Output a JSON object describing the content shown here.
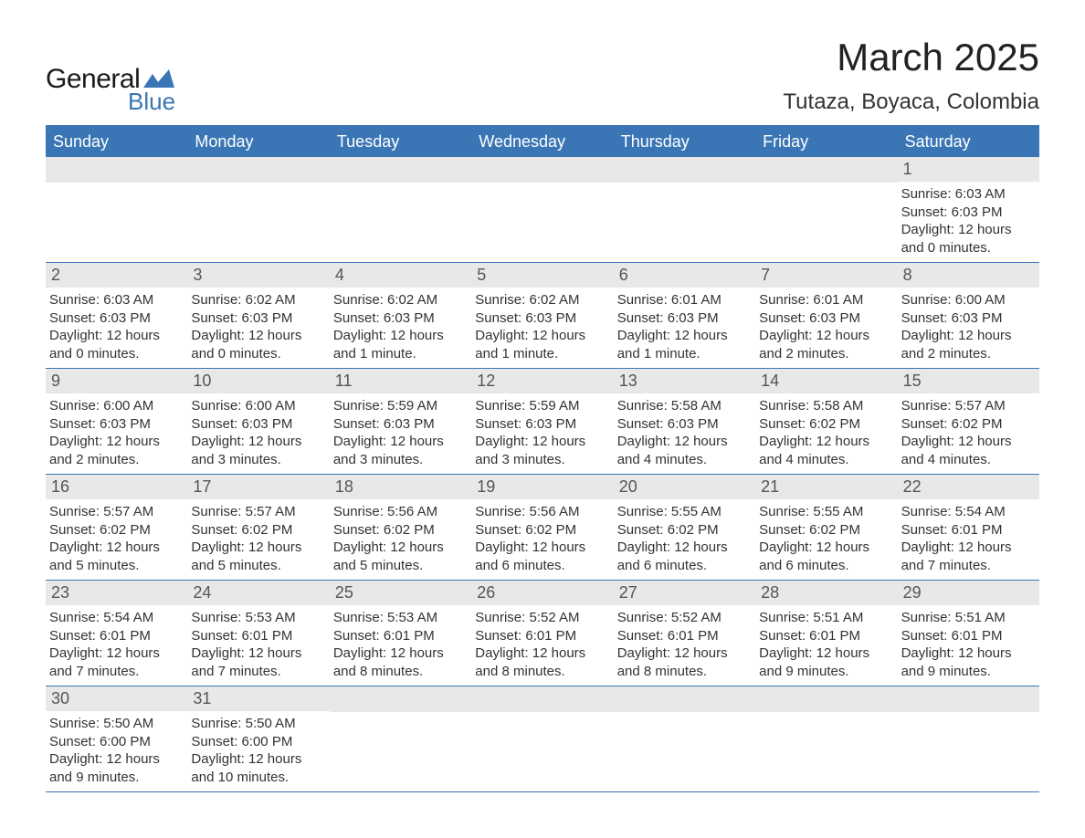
{
  "brand": {
    "general": "General",
    "blue": "Blue",
    "logo_color": "#3a76b5"
  },
  "title": "March 2025",
  "location": "Tutaza, Boyaca, Colombia",
  "colors": {
    "header_bg": "#3a76b5",
    "header_text": "#ffffff",
    "daynum_bg": "#e8e8e8",
    "daynum_text": "#555555",
    "body_text": "#333333",
    "border": "#3a76b5",
    "page_bg": "#ffffff"
  },
  "weekdays": [
    "Sunday",
    "Monday",
    "Tuesday",
    "Wednesday",
    "Thursday",
    "Friday",
    "Saturday"
  ],
  "first_weekday_index": 6,
  "days": [
    {
      "n": 1,
      "sunrise": "6:03 AM",
      "sunset": "6:03 PM",
      "daylight": "12 hours and 0 minutes."
    },
    {
      "n": 2,
      "sunrise": "6:03 AM",
      "sunset": "6:03 PM",
      "daylight": "12 hours and 0 minutes."
    },
    {
      "n": 3,
      "sunrise": "6:02 AM",
      "sunset": "6:03 PM",
      "daylight": "12 hours and 0 minutes."
    },
    {
      "n": 4,
      "sunrise": "6:02 AM",
      "sunset": "6:03 PM",
      "daylight": "12 hours and 1 minute."
    },
    {
      "n": 5,
      "sunrise": "6:02 AM",
      "sunset": "6:03 PM",
      "daylight": "12 hours and 1 minute."
    },
    {
      "n": 6,
      "sunrise": "6:01 AM",
      "sunset": "6:03 PM",
      "daylight": "12 hours and 1 minute."
    },
    {
      "n": 7,
      "sunrise": "6:01 AM",
      "sunset": "6:03 PM",
      "daylight": "12 hours and 2 minutes."
    },
    {
      "n": 8,
      "sunrise": "6:00 AM",
      "sunset": "6:03 PM",
      "daylight": "12 hours and 2 minutes."
    },
    {
      "n": 9,
      "sunrise": "6:00 AM",
      "sunset": "6:03 PM",
      "daylight": "12 hours and 2 minutes."
    },
    {
      "n": 10,
      "sunrise": "6:00 AM",
      "sunset": "6:03 PM",
      "daylight": "12 hours and 3 minutes."
    },
    {
      "n": 11,
      "sunrise": "5:59 AM",
      "sunset": "6:03 PM",
      "daylight": "12 hours and 3 minutes."
    },
    {
      "n": 12,
      "sunrise": "5:59 AM",
      "sunset": "6:03 PM",
      "daylight": "12 hours and 3 minutes."
    },
    {
      "n": 13,
      "sunrise": "5:58 AM",
      "sunset": "6:03 PM",
      "daylight": "12 hours and 4 minutes."
    },
    {
      "n": 14,
      "sunrise": "5:58 AM",
      "sunset": "6:02 PM",
      "daylight": "12 hours and 4 minutes."
    },
    {
      "n": 15,
      "sunrise": "5:57 AM",
      "sunset": "6:02 PM",
      "daylight": "12 hours and 4 minutes."
    },
    {
      "n": 16,
      "sunrise": "5:57 AM",
      "sunset": "6:02 PM",
      "daylight": "12 hours and 5 minutes."
    },
    {
      "n": 17,
      "sunrise": "5:57 AM",
      "sunset": "6:02 PM",
      "daylight": "12 hours and 5 minutes."
    },
    {
      "n": 18,
      "sunrise": "5:56 AM",
      "sunset": "6:02 PM",
      "daylight": "12 hours and 5 minutes."
    },
    {
      "n": 19,
      "sunrise": "5:56 AM",
      "sunset": "6:02 PM",
      "daylight": "12 hours and 6 minutes."
    },
    {
      "n": 20,
      "sunrise": "5:55 AM",
      "sunset": "6:02 PM",
      "daylight": "12 hours and 6 minutes."
    },
    {
      "n": 21,
      "sunrise": "5:55 AM",
      "sunset": "6:02 PM",
      "daylight": "12 hours and 6 minutes."
    },
    {
      "n": 22,
      "sunrise": "5:54 AM",
      "sunset": "6:01 PM",
      "daylight": "12 hours and 7 minutes."
    },
    {
      "n": 23,
      "sunrise": "5:54 AM",
      "sunset": "6:01 PM",
      "daylight": "12 hours and 7 minutes."
    },
    {
      "n": 24,
      "sunrise": "5:53 AM",
      "sunset": "6:01 PM",
      "daylight": "12 hours and 7 minutes."
    },
    {
      "n": 25,
      "sunrise": "5:53 AM",
      "sunset": "6:01 PM",
      "daylight": "12 hours and 8 minutes."
    },
    {
      "n": 26,
      "sunrise": "5:52 AM",
      "sunset": "6:01 PM",
      "daylight": "12 hours and 8 minutes."
    },
    {
      "n": 27,
      "sunrise": "5:52 AM",
      "sunset": "6:01 PM",
      "daylight": "12 hours and 8 minutes."
    },
    {
      "n": 28,
      "sunrise": "5:51 AM",
      "sunset": "6:01 PM",
      "daylight": "12 hours and 9 minutes."
    },
    {
      "n": 29,
      "sunrise": "5:51 AM",
      "sunset": "6:01 PM",
      "daylight": "12 hours and 9 minutes."
    },
    {
      "n": 30,
      "sunrise": "5:50 AM",
      "sunset": "6:00 PM",
      "daylight": "12 hours and 9 minutes."
    },
    {
      "n": 31,
      "sunrise": "5:50 AM",
      "sunset": "6:00 PM",
      "daylight": "12 hours and 10 minutes."
    }
  ],
  "labels": {
    "sunrise": "Sunrise:",
    "sunset": "Sunset:",
    "daylight": "Daylight:"
  }
}
